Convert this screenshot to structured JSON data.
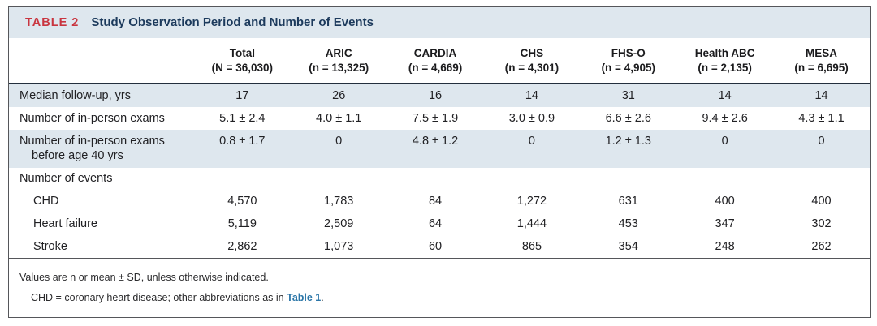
{
  "table": {
    "label": "TABLE 2",
    "title": "Study Observation Period and Number of Events",
    "columns": [
      {
        "name": "Total",
        "n": "(N = 36,030)"
      },
      {
        "name": "ARIC",
        "n": "(n = 13,325)"
      },
      {
        "name": "CARDIA",
        "n": "(n = 4,669)"
      },
      {
        "name": "CHS",
        "n": "(n = 4,301)"
      },
      {
        "name": "FHS-O",
        "n": "(n = 4,905)"
      },
      {
        "name": "Health ABC",
        "n": "(n = 2,135)"
      },
      {
        "name": "MESA",
        "n": "(n = 6,695)"
      }
    ],
    "rows": [
      {
        "label": "Median follow-up, yrs",
        "values": [
          "17",
          "26",
          "16",
          "14",
          "31",
          "14",
          "14"
        ]
      },
      {
        "label": "Number of in-person exams",
        "values": [
          "5.1 ± 2.4",
          "4.0 ± 1.1",
          "7.5 ± 1.9",
          "3.0 ± 0.9",
          "6.6 ± 2.6",
          "9.4 ± 2.6",
          "4.3 ± 1.1"
        ]
      },
      {
        "label": "Number of in-person exams",
        "label_line2": "before age 40 yrs",
        "values": [
          "0.8 ± 1.7",
          "0",
          "4.8 ± 1.2",
          "0",
          "1.2 ± 1.3",
          "0",
          "0"
        ]
      },
      {
        "label": "Number of events",
        "values": [
          "",
          "",
          "",
          "",
          "",
          "",
          ""
        ]
      },
      {
        "label": "CHD",
        "values": [
          "4,570",
          "1,783",
          "84",
          "1,272",
          "631",
          "400",
          "400"
        ]
      },
      {
        "label": "Heart failure",
        "values": [
          "5,119",
          "2,509",
          "64",
          "1,444",
          "453",
          "347",
          "302"
        ]
      },
      {
        "label": "Stroke",
        "values": [
          "2,862",
          "1,073",
          "60",
          "865",
          "354",
          "248",
          "262"
        ]
      }
    ],
    "footnotes": {
      "line1": "Values are n or mean ± SD, unless otherwise indicated.",
      "line2_pre": "CHD = coronary heart disease; other abbreviations as in",
      "line2_link": "Table 1",
      "line2_post": "."
    },
    "colors": {
      "accent_red": "#c9353f",
      "title_navy": "#1c3a5c",
      "band_blue": "#dee7ee",
      "link_blue": "#2b76a8"
    }
  }
}
